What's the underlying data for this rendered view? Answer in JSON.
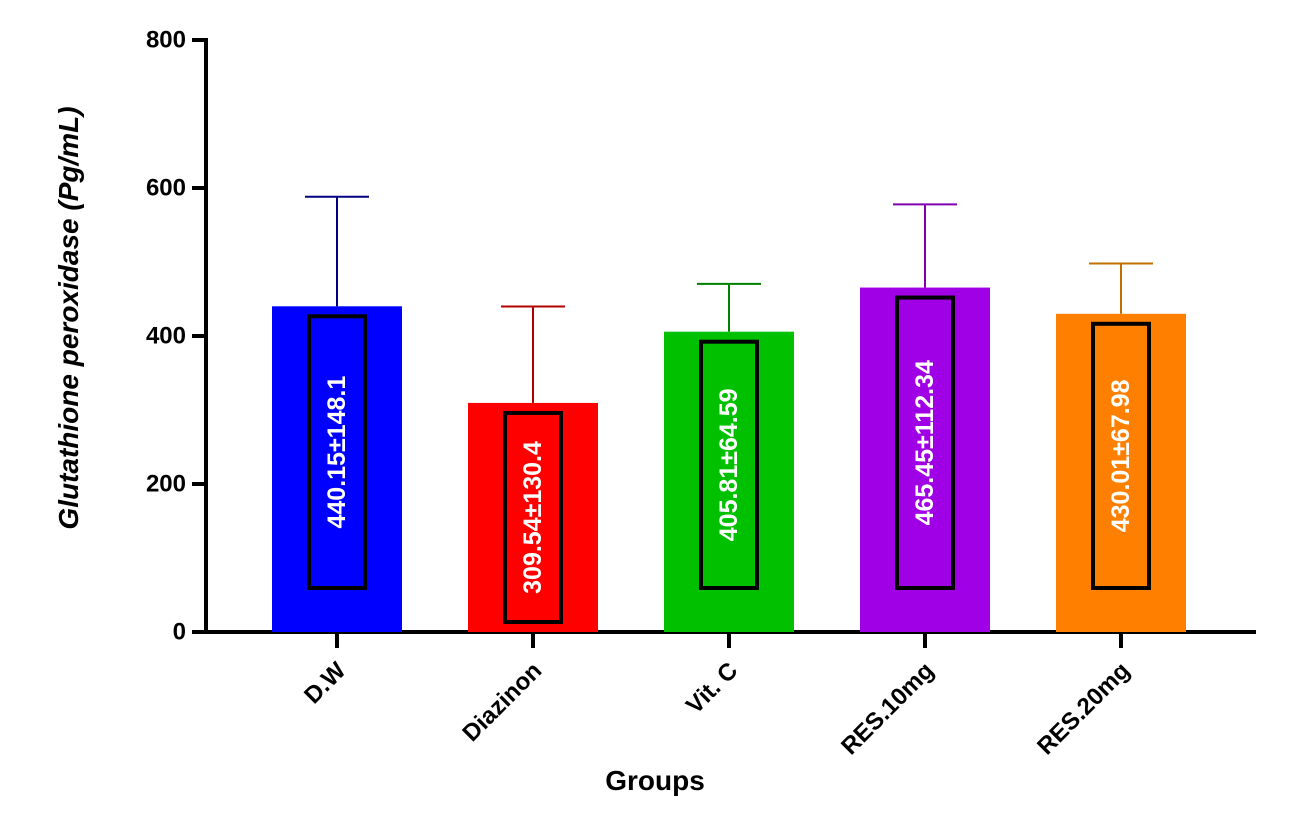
{
  "chart_data": {
    "type": "bar",
    "categories": [
      "D.W",
      "Diazinon",
      "Vit. C",
      "RES.10mg",
      "RES.20mg"
    ],
    "values": [
      440.15,
      309.54,
      405.81,
      465.45,
      430.01
    ],
    "errors": [
      148.1,
      130.4,
      64.59,
      112.34,
      67.98
    ],
    "value_labels": [
      "440.15±148.1",
      "309.54±130.4",
      "405.81±64.59",
      "465.45±112.34",
      "430.01±67.98"
    ],
    "colors": [
      "#0000ff",
      "#ff0000",
      "#00c000",
      "#a000e6",
      "#ff8000"
    ],
    "error_colors": [
      "#000080",
      "#b00000",
      "#008000",
      "#8000b0",
      "#c07000"
    ],
    "label_colors": [
      "#ffffff",
      "#ffffff",
      "#ffffff",
      "#ffffff",
      "#ffffff"
    ],
    "xlabel": "Groups",
    "ylabel": "Glutathione peroxidase (Pg/mL)",
    "ylim": [
      0,
      800
    ],
    "yticks": [
      0,
      200,
      400,
      600,
      800
    ],
    "grid": false,
    "legend": "none"
  }
}
